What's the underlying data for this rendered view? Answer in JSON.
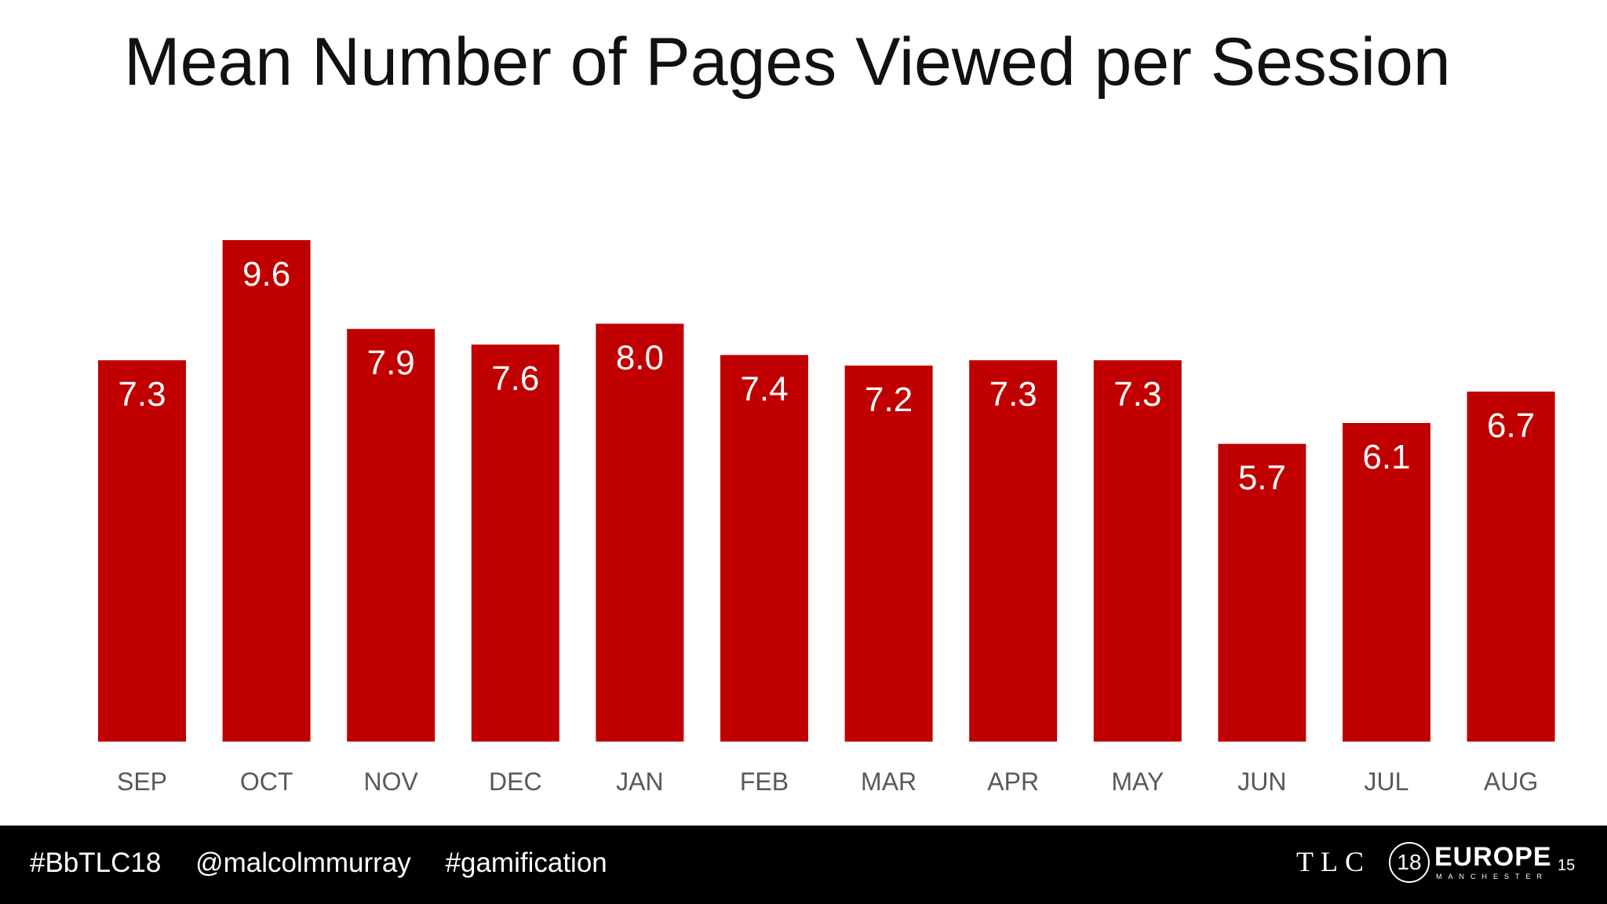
{
  "slide": {
    "title": "Mean Number of Pages Viewed per Session",
    "page_number": "15"
  },
  "footer": {
    "hashtags": [
      "#BbTLC18",
      "@malcolmmurray",
      "#gamification"
    ],
    "logo": {
      "tlc": "TLC",
      "number": "18",
      "europe": "EUROPE",
      "city": "MANCHESTER"
    }
  },
  "colors": {
    "bar": "#C00000",
    "bar_label": "#FFFFFF",
    "tick_label": "#595959",
    "footer_bg": "#000000"
  },
  "chart_data": {
    "type": "bar",
    "title": "Mean Number of Pages Viewed per Session",
    "categories": [
      "SEP",
      "OCT",
      "NOV",
      "DEC",
      "JAN",
      "FEB",
      "MAR",
      "APR",
      "MAY",
      "JUN",
      "JUL",
      "AUG"
    ],
    "series": [
      {
        "values": [
          7.3,
          9.6,
          7.9,
          7.6,
          8.0,
          7.4,
          7.2,
          7.3,
          7.3,
          5.7,
          6.1,
          6.7
        ],
        "labels": [
          "7.3",
          "9.6",
          "7.9",
          "7.6",
          "8.0",
          "7.4",
          "7.2",
          "7.3",
          "7.3",
          "5.7",
          "6.1",
          "6.7"
        ]
      }
    ],
    "ylim": [
      0,
      9.6
    ],
    "xlabel": "",
    "ylabel": "",
    "grid": false,
    "legend": "none",
    "data_labels": "inside-top"
  }
}
